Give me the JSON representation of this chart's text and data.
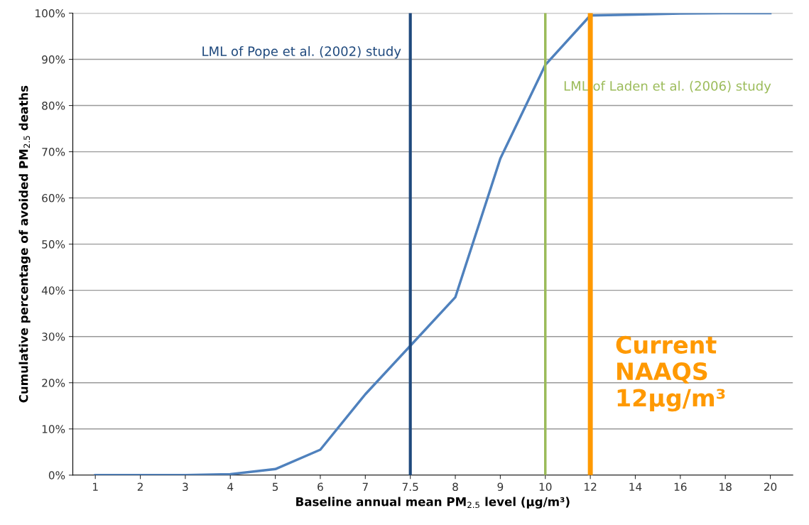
{
  "chart_data": {
    "type": "line",
    "xlabel": "Baseline annual mean PM$_{2.5}$ level (µg/m³)",
    "ylabel": "Cumulative percentage of avoided PM$_{2.5}$ deaths",
    "categories": [
      "1",
      "2",
      "3",
      "4",
      "5",
      "6",
      "7",
      "7.5",
      "8",
      "9",
      "10",
      "12",
      "14",
      "16",
      "18",
      "20"
    ],
    "series": [
      {
        "color": "#4f81bd",
        "values": [
          0,
          0,
          0,
          0.2,
          1.3,
          5.5,
          17.5,
          28,
          38.5,
          68.5,
          88.8,
          99.5,
          99.7,
          99.9,
          100,
          100
        ]
      }
    ],
    "ylim": [
      0,
      100
    ],
    "yticks": [
      {
        "value": 0,
        "label": "0%"
      },
      {
        "value": 10,
        "label": "10%"
      },
      {
        "value": 20,
        "label": "20%"
      },
      {
        "value": 30,
        "label": "30%"
      },
      {
        "value": 40,
        "label": "40%"
      },
      {
        "value": 50,
        "label": "50%"
      },
      {
        "value": 60,
        "label": "60%"
      },
      {
        "value": 70,
        "label": "70%"
      },
      {
        "value": 80,
        "label": "80%"
      },
      {
        "value": 90,
        "label": "90%"
      },
      {
        "value": 100,
        "label": "100%"
      }
    ],
    "grid": "y",
    "marker": "none",
    "line_style": "solid",
    "ref_lines": [
      {
        "axis": "x",
        "value": "7.5",
        "label": "LML of Pope et al. (2002) study",
        "color": "#1f497d"
      },
      {
        "axis": "x",
        "value": "10",
        "label": "LML of Laden et al. (2006) study",
        "color": "#9bbb59"
      },
      {
        "axis": "x",
        "value": "12",
        "label": "Current\nNAAQS\n12µg/m³",
        "color": "#ff9900"
      }
    ]
  }
}
